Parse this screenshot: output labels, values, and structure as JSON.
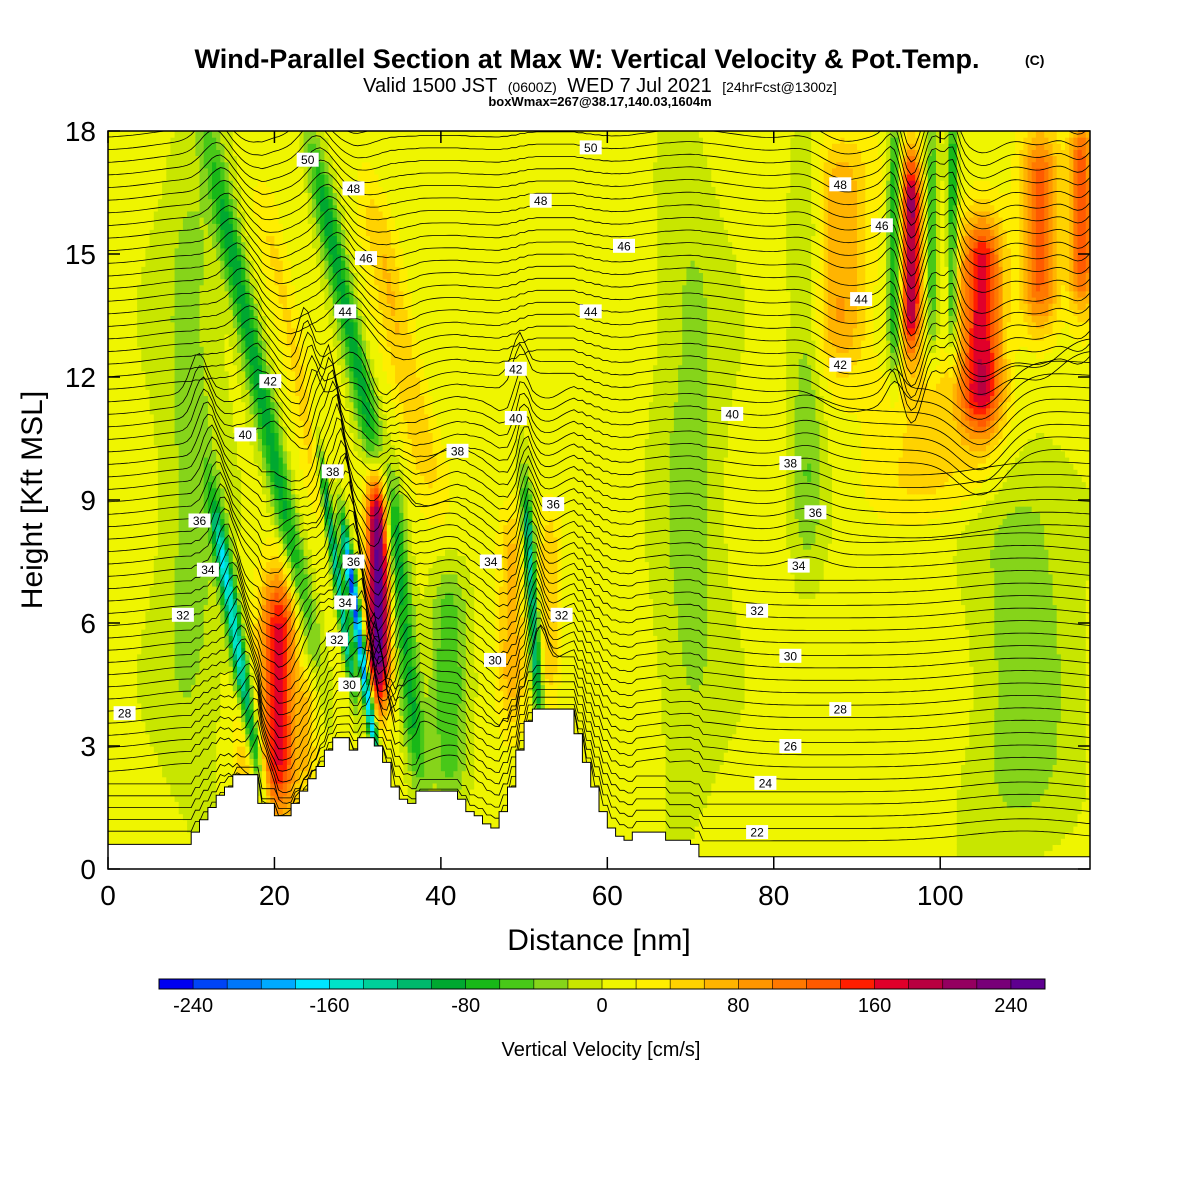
{
  "title": "Wind-Parallel Section at Max W: Vertical Velocity & Pot.Temp.",
  "title_mark": "(C)",
  "subtitle": {
    "a": "Valid 1500 JST",
    "b": "(0600Z)",
    "c": "WED 7 Jul 2021",
    "d": "[24hrFcst@1300z]"
  },
  "info": "boxWmax=267@38.17,140.03,1604m",
  "chart_data": {
    "type": "heatmap",
    "xlabel": "Distance [nm]",
    "ylabel": "Height [Kft MSL]",
    "xlim": [
      0,
      118
    ],
    "ylim": [
      0,
      18
    ],
    "xticks": [
      "0",
      "20",
      "40",
      "60",
      "80",
      "100"
    ],
    "yticks": [
      "0",
      "3",
      "6",
      "9",
      "12",
      "15",
      "18"
    ],
    "colorbar": {
      "label": "Vertical Velocity [cm/s]",
      "ticks": [
        "-240",
        "-160",
        "-80",
        "0",
        "80",
        "160",
        "240"
      ],
      "min": -260,
      "max": 260,
      "step": 20,
      "colors": [
        "#0000f0",
        "#0044f6",
        "#0077fa",
        "#00aaff",
        "#00e6ff",
        "#00e3c8",
        "#00d09a",
        "#00b86c",
        "#00a830",
        "#18b818",
        "#48c818",
        "#86d41a",
        "#c8e600",
        "#eff500",
        "#ffee00",
        "#ffd200",
        "#ffb400",
        "#ff9600",
        "#ff7800",
        "#ff5a00",
        "#ff1e00",
        "#e0002a",
        "#b80040",
        "#940060",
        "#780078",
        "#5e0090"
      ]
    },
    "theta_contours": {
      "units": "potential temperature",
      "levels": [
        "22",
        "24",
        "26",
        "28",
        "30",
        "32",
        "34",
        "36",
        "38",
        "40",
        "42",
        "44",
        "46",
        "48",
        "50"
      ]
    },
    "labels_shown": [
      {
        "text": "50",
        "x": 24,
        "y": 17.3
      },
      {
        "text": "48",
        "x": 29.5,
        "y": 16.6
      },
      {
        "text": "46",
        "x": 31,
        "y": 14.9
      },
      {
        "text": "44",
        "x": 28.5,
        "y": 13.6
      },
      {
        "text": "42",
        "x": 19.5,
        "y": 11.9
      },
      {
        "text": "40",
        "x": 16.5,
        "y": 10.6
      },
      {
        "text": "38",
        "x": 27,
        "y": 9.7
      },
      {
        "text": "36",
        "x": 11,
        "y": 8.5
      },
      {
        "text": "34",
        "x": 12,
        "y": 7.3
      },
      {
        "text": "32",
        "x": 9,
        "y": 6.2
      },
      {
        "text": "28",
        "x": 2,
        "y": 3.8
      },
      {
        "text": "36",
        "x": 29.5,
        "y": 7.5
      },
      {
        "text": "34",
        "x": 28.5,
        "y": 6.5
      },
      {
        "text": "32",
        "x": 27.5,
        "y": 5.6
      },
      {
        "text": "30",
        "x": 29,
        "y": 4.5
      },
      {
        "text": "50",
        "x": 58,
        "y": 17.6
      },
      {
        "text": "48",
        "x": 52,
        "y": 16.3
      },
      {
        "text": "46",
        "x": 62,
        "y": 15.2
      },
      {
        "text": "44",
        "x": 58,
        "y": 13.6
      },
      {
        "text": "42",
        "x": 49,
        "y": 12.2
      },
      {
        "text": "40",
        "x": 49,
        "y": 11.0
      },
      {
        "text": "38",
        "x": 42,
        "y": 10.2
      },
      {
        "text": "36",
        "x": 53.5,
        "y": 8.9
      },
      {
        "text": "34",
        "x": 46,
        "y": 7.5
      },
      {
        "text": "32",
        "x": 54.5,
        "y": 6.2
      },
      {
        "text": "30",
        "x": 46.5,
        "y": 5.1
      },
      {
        "text": "48",
        "x": 88,
        "y": 16.7
      },
      {
        "text": "46",
        "x": 93,
        "y": 15.7
      },
      {
        "text": "44",
        "x": 90.5,
        "y": 13.9
      },
      {
        "text": "42",
        "x": 88,
        "y": 12.3
      },
      {
        "text": "40",
        "x": 75,
        "y": 11.1
      },
      {
        "text": "38",
        "x": 82,
        "y": 9.9
      },
      {
        "text": "36",
        "x": 85,
        "y": 8.7
      },
      {
        "text": "34",
        "x": 83,
        "y": 7.4
      },
      {
        "text": "32",
        "x": 78,
        "y": 6.3
      },
      {
        "text": "30",
        "x": 82,
        "y": 5.2
      },
      {
        "text": "28",
        "x": 88,
        "y": 3.9
      },
      {
        "text": "26",
        "x": 82,
        "y": 3.0
      },
      {
        "text": "24",
        "x": 79,
        "y": 2.1
      },
      {
        "text": "22",
        "x": 78,
        "y": 0.9
      }
    ],
    "terrain_kft": [
      [
        0,
        0.6
      ],
      [
        1,
        0.6
      ],
      [
        9,
        0.6
      ],
      [
        10,
        0.9
      ],
      [
        11,
        1.2
      ],
      [
        12,
        1.5
      ],
      [
        13,
        1.8
      ],
      [
        14,
        2.0
      ],
      [
        15,
        2.3
      ],
      [
        17,
        2.3
      ],
      [
        18,
        1.6
      ],
      [
        19,
        1.6
      ],
      [
        20,
        1.3
      ],
      [
        21,
        1.3
      ],
      [
        22,
        1.6
      ],
      [
        23,
        1.9
      ],
      [
        24,
        2.2
      ],
      [
        25,
        2.5
      ],
      [
        26,
        2.9
      ],
      [
        27,
        3.2
      ],
      [
        28,
        3.2
      ],
      [
        29,
        2.9
      ],
      [
        30,
        3.2
      ],
      [
        31,
        3.2
      ],
      [
        32,
        3.0
      ],
      [
        33,
        2.6
      ],
      [
        34,
        2.0
      ],
      [
        35,
        1.7
      ],
      [
        36,
        1.6
      ],
      [
        37,
        1.9
      ],
      [
        39,
        1.9
      ],
      [
        41,
        1.9
      ],
      [
        42,
        1.7
      ],
      [
        43,
        1.4
      ],
      [
        44,
        1.3
      ],
      [
        45,
        1.1
      ],
      [
        46,
        1.0
      ],
      [
        47,
        1.4
      ],
      [
        48,
        2.0
      ],
      [
        49,
        2.9
      ],
      [
        50,
        3.6
      ],
      [
        51,
        3.9
      ],
      [
        55,
        3.9
      ],
      [
        56,
        3.3
      ],
      [
        57,
        2.6
      ],
      [
        58,
        2.0
      ],
      [
        59,
        1.4
      ],
      [
        60,
        1.0
      ],
      [
        61,
        0.8
      ],
      [
        62,
        0.7
      ],
      [
        63,
        0.9
      ],
      [
        66,
        0.9
      ],
      [
        67,
        0.7
      ],
      [
        70,
        0.6
      ],
      [
        71,
        0.3
      ],
      [
        118,
        0.3
      ]
    ],
    "features": [
      {
        "type": "up",
        "x": 20.5,
        "zlo": 1.8,
        "zhi": 6.8,
        "w": 160,
        "sx": 2.2,
        "tilt": 0.0
      },
      {
        "type": "up",
        "x": 32.5,
        "zlo": 4.5,
        "zhi": 9.5,
        "w": 250,
        "sx": 1.4,
        "tilt": 0.0
      },
      {
        "type": "up",
        "x": 16.5,
        "zlo": 2.0,
        "zhi": 4.0,
        "w": 50,
        "sx": 1.2,
        "tilt": 0.0
      },
      {
        "type": "up",
        "x": 24.0,
        "zlo": 2.4,
        "zhi": 4.5,
        "w": 45,
        "sx": 1.2,
        "tilt": 0.0
      },
      {
        "type": "down",
        "x": 15.5,
        "zlo": 2.5,
        "zhi": 8.5,
        "w": -160,
        "sx": 0.9,
        "tilt": -0.8
      },
      {
        "type": "down",
        "x": 30.3,
        "zlo": 3.0,
        "zhi": 8.0,
        "w": -240,
        "sx": 0.6,
        "tilt": -0.7
      },
      {
        "type": "down",
        "x": 27.5,
        "zlo": 4.5,
        "zhi": 10.0,
        "w": -140,
        "sx": 0.6,
        "tilt": -0.7
      },
      {
        "type": "down",
        "x": 35.5,
        "zlo": 2.5,
        "zhi": 9.5,
        "w": -90,
        "sx": 1.3,
        "tilt": -0.5
      },
      {
        "type": "down",
        "x": 18.5,
        "zlo": 6.0,
        "zhi": 17.0,
        "w": -100,
        "sx": 1.4,
        "tilt": -1.0
      },
      {
        "type": "down",
        "x": 29.0,
        "zlo": 9.0,
        "zhi": 17.5,
        "w": -100,
        "sx": 1.4,
        "tilt": -1.0
      },
      {
        "type": "up",
        "x": 22.5,
        "zlo": 9.0,
        "zhi": 16.0,
        "w": 40,
        "sx": 1.6,
        "tilt": -1.0
      },
      {
        "type": "up",
        "x": 35.0,
        "zlo": 9.5,
        "zhi": 16.5,
        "w": 50,
        "sx": 2.0,
        "tilt": -1.0
      },
      {
        "type": "up",
        "x": 48.5,
        "zlo": 4.0,
        "zhi": 8.5,
        "w": 60,
        "sx": 1.6,
        "tilt": 0.0
      },
      {
        "type": "up",
        "x": 53.0,
        "zlo": 4.5,
        "zhi": 8.5,
        "w": 50,
        "sx": 1.3,
        "tilt": 0.0
      },
      {
        "type": "down",
        "x": 51.0,
        "zlo": 4.0,
        "zhi": 9.0,
        "w": -140,
        "sx": 0.7,
        "tilt": -0.3
      },
      {
        "type": "down",
        "x": 41.0,
        "zlo": 2.0,
        "zhi": 7.0,
        "w": -60,
        "sx": 2.2,
        "tilt": 0.0
      },
      {
        "type": "up",
        "x": 88.0,
        "zlo": 12.5,
        "zhi": 17.5,
        "w": 70,
        "sx": 3.5,
        "tilt": 0.0
      },
      {
        "type": "up",
        "x": 96.5,
        "zlo": 13.0,
        "zhi": 17.0,
        "w": 200,
        "sx": 1.2,
        "tilt": 0.0
      },
      {
        "type": "up",
        "x": 105.0,
        "zlo": 11.0,
        "zhi": 15.5,
        "w": 160,
        "sx": 2.5,
        "tilt": 0.0
      },
      {
        "type": "up",
        "x": 112.0,
        "zlo": 13.5,
        "zhi": 17.5,
        "w": 120,
        "sx": 2.2,
        "tilt": 0.0
      },
      {
        "type": "up",
        "x": 117.0,
        "zlo": 14.0,
        "zhi": 18.0,
        "w": 120,
        "sx": 1.5,
        "tilt": 0.0
      },
      {
        "type": "down",
        "x": 94.5,
        "zlo": 12.5,
        "zhi": 18.0,
        "w": -90,
        "sx": 0.8,
        "tilt": 0.0
      },
      {
        "type": "down",
        "x": 99.0,
        "zlo": 13.0,
        "zhi": 18.0,
        "w": -60,
        "sx": 0.8,
        "tilt": 0.0
      },
      {
        "type": "down",
        "x": 101.5,
        "zlo": 13.0,
        "zhi": 18.0,
        "w": -90,
        "sx": 0.6,
        "tilt": 0.0
      },
      {
        "type": "down",
        "x": 84.0,
        "zlo": 8.0,
        "zhi": 17.0,
        "w": -45,
        "sx": 2.0,
        "tilt": 0.0
      },
      {
        "type": "down",
        "x": 10.0,
        "zlo": 3.0,
        "zhi": 17.0,
        "w": -35,
        "sx": 4.0,
        "tilt": 0.0
      },
      {
        "type": "down",
        "x": 70.0,
        "zlo": 3.0,
        "zhi": 16.0,
        "w": -35,
        "sx": 4.0,
        "tilt": 0.0
      },
      {
        "type": "down",
        "x": 110.0,
        "zlo": 1.0,
        "zhi": 10.0,
        "w": -40,
        "sx": 6.0,
        "tilt": 0.0
      },
      {
        "type": "up",
        "x": 100.0,
        "zlo": 9.0,
        "zhi": 12.0,
        "w": 40,
        "sx": 8.0,
        "tilt": 0.0
      }
    ]
  }
}
